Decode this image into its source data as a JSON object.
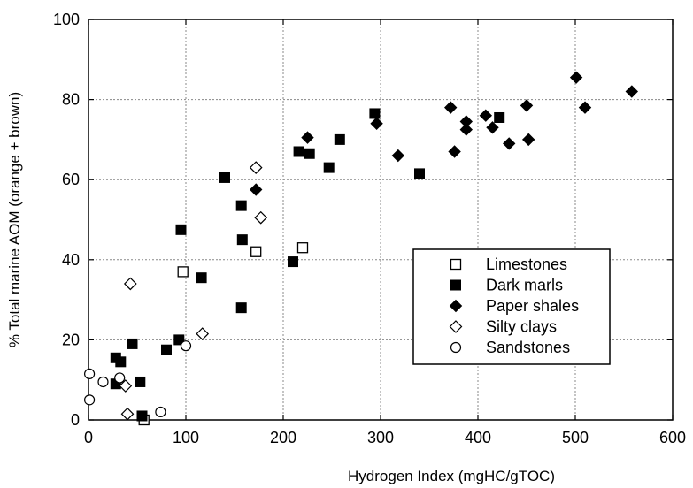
{
  "chart_data": {
    "type": "scatter",
    "xlabel": "Hydrogen Index (mgHC/gTOC)",
    "ylabel": "% Total marine AOM (orange + brown)",
    "xlim": [
      0,
      600
    ],
    "ylim": [
      0,
      100
    ],
    "xticks": [
      0,
      100,
      200,
      300,
      400,
      500,
      600
    ],
    "yticks": [
      0,
      20,
      40,
      60,
      80,
      100
    ],
    "grid": true,
    "legend_position": "right",
    "series": [
      {
        "name": "Limestones",
        "marker": "open-square",
        "points": [
          [
            97,
            37
          ],
          [
            220,
            43
          ],
          [
            172,
            42
          ],
          [
            57,
            0
          ]
        ]
      },
      {
        "name": "Dark marls",
        "marker": "filled-square",
        "points": [
          [
            28,
            15.5
          ],
          [
            33,
            14.5
          ],
          [
            28,
            9
          ],
          [
            45,
            19
          ],
          [
            53,
            9.5
          ],
          [
            55,
            1
          ],
          [
            80,
            17.5
          ],
          [
            93,
            20
          ],
          [
            95,
            47.5
          ],
          [
            116,
            35.5
          ],
          [
            140,
            60.5
          ],
          [
            157,
            53.5
          ],
          [
            158,
            45
          ],
          [
            157,
            28
          ],
          [
            210,
            39.5
          ],
          [
            216,
            67
          ],
          [
            227,
            66.5
          ],
          [
            247,
            63
          ],
          [
            258,
            70
          ],
          [
            294,
            76.5
          ],
          [
            340,
            61.5
          ],
          [
            422,
            75.5
          ]
        ]
      },
      {
        "name": "Paper shales",
        "marker": "filled-diamond",
        "points": [
          [
            172,
            57.5
          ],
          [
            225,
            70.5
          ],
          [
            296,
            74
          ],
          [
            318,
            66
          ],
          [
            372,
            78
          ],
          [
            376,
            67
          ],
          [
            388,
            74.5
          ],
          [
            388,
            72.5
          ],
          [
            408,
            76
          ],
          [
            415,
            73
          ],
          [
            432,
            69
          ],
          [
            450,
            78.5
          ],
          [
            452,
            70
          ],
          [
            501,
            85.5
          ],
          [
            510,
            78
          ],
          [
            558,
            82
          ]
        ]
      },
      {
        "name": "Silty clays",
        "marker": "open-diamond",
        "points": [
          [
            43,
            34
          ],
          [
            117,
            21.5
          ],
          [
            172,
            63
          ],
          [
            177,
            50.5
          ],
          [
            38,
            8.5
          ],
          [
            40,
            1.5
          ]
        ]
      },
      {
        "name": "Sandstones",
        "marker": "open-circle",
        "points": [
          [
            1,
            11.5
          ],
          [
            15,
            9.5
          ],
          [
            32,
            10.5
          ],
          [
            1,
            5
          ],
          [
            74,
            2
          ],
          [
            100,
            18.5
          ]
        ]
      }
    ]
  }
}
